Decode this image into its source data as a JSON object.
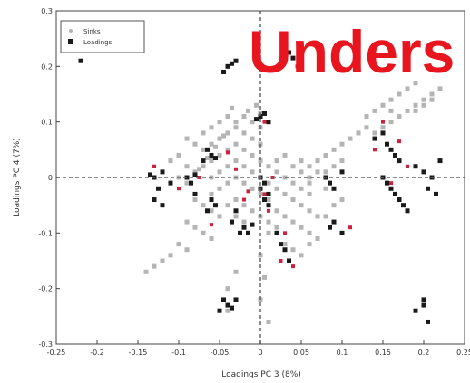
{
  "chart_data": {
    "type": "scatter",
    "title": "",
    "xlabel": "Loadings PC 3 (8%)",
    "ylabel": "Loadings PC 4 (7%)",
    "xlim": [
      -0.25,
      0.25
    ],
    "ylim": [
      -0.3,
      0.3
    ],
    "xticks": [
      -0.25,
      -0.2,
      -0.15,
      -0.1,
      -0.05,
      0,
      0.05,
      0.1,
      0.15,
      0.2,
      0.25
    ],
    "xtick_labels": [
      "-0.25",
      "-0.2",
      "-0.15",
      "-0.1",
      "-0.05",
      "0",
      "0.05",
      "0.1",
      "0.15",
      "0.2",
      "0.25"
    ],
    "yticks": [
      -0.3,
      -0.2,
      -0.1,
      0,
      0.1,
      0.2,
      0.3
    ],
    "ytick_labels": [
      "-0.3",
      "-0.2",
      "-0.1",
      "0",
      "0.1",
      "0.2",
      "0.3"
    ],
    "reference_lines": {
      "x": 0,
      "y": 0,
      "style": "dashed"
    },
    "grid": false,
    "legend": {
      "position": "top-left",
      "entries": [
        "Sinks",
        "Loadings"
      ]
    },
    "overlay_text": "Unders",
    "series": [
      {
        "name": "Sinks",
        "color": "#b4b4b4",
        "points": [
          [
            -0.07,
            0.02
          ],
          [
            -0.06,
            0.03
          ],
          [
            -0.05,
            0.04
          ],
          [
            -0.04,
            0.05
          ],
          [
            -0.03,
            0.06
          ],
          [
            -0.02,
            0.05
          ],
          [
            -0.01,
            0.04
          ],
          [
            0.0,
            0.03
          ],
          [
            -0.07,
            0.05
          ],
          [
            -0.06,
            0.06
          ],
          [
            -0.05,
            0.07
          ],
          [
            -0.04,
            0.08
          ],
          [
            -0.03,
            0.09
          ],
          [
            -0.02,
            0.08
          ],
          [
            -0.01,
            0.07
          ],
          [
            0.0,
            0.06
          ],
          [
            -0.06,
            0.0
          ],
          [
            -0.05,
            0.01
          ],
          [
            -0.04,
            0.02
          ],
          [
            -0.03,
            0.03
          ],
          [
            -0.02,
            0.02
          ],
          [
            -0.01,
            0.01
          ],
          [
            0.0,
            0.0
          ],
          [
            0.01,
            -0.01
          ],
          [
            -0.06,
            -0.03
          ],
          [
            -0.05,
            -0.02
          ],
          [
            -0.04,
            -0.01
          ],
          [
            -0.03,
            0.0
          ],
          [
            -0.02,
            -0.01
          ],
          [
            -0.01,
            -0.02
          ],
          [
            0.0,
            -0.03
          ],
          [
            0.01,
            -0.04
          ],
          [
            -0.08,
            -0.04
          ],
          [
            -0.07,
            -0.05
          ],
          [
            -0.06,
            -0.06
          ],
          [
            -0.05,
            -0.07
          ],
          [
            -0.04,
            -0.05
          ],
          [
            -0.03,
            -0.04
          ],
          [
            -0.09,
            -0.08
          ],
          [
            -0.08,
            -0.09
          ],
          [
            -0.07,
            -0.1
          ],
          [
            -0.06,
            -0.11
          ],
          [
            -0.1,
            -0.12
          ],
          [
            -0.09,
            -0.13
          ],
          [
            -0.11,
            -0.14
          ],
          [
            -0.12,
            -0.15
          ],
          [
            -0.13,
            -0.16
          ],
          [
            -0.14,
            -0.17
          ],
          [
            0.01,
            0.02
          ],
          [
            0.02,
            0.01
          ],
          [
            0.03,
            0.0
          ],
          [
            0.04,
            -0.01
          ],
          [
            0.05,
            -0.02
          ],
          [
            0.06,
            -0.03
          ],
          [
            0.02,
            -0.02
          ],
          [
            0.03,
            -0.03
          ],
          [
            0.04,
            -0.04
          ],
          [
            0.05,
            -0.05
          ],
          [
            0.06,
            -0.06
          ],
          [
            0.07,
            -0.07
          ],
          [
            0.04,
            -0.08
          ],
          [
            0.05,
            -0.09
          ],
          [
            0.06,
            -0.1
          ],
          [
            0.07,
            -0.11
          ],
          [
            0.03,
            -0.12
          ],
          [
            0.04,
            -0.13
          ],
          [
            0.05,
            -0.14
          ],
          [
            0.02,
            -0.06
          ],
          [
            0.03,
            -0.07
          ],
          [
            0.01,
            -0.08
          ],
          [
            0.02,
            -0.09
          ],
          [
            0.01,
            -0.1
          ],
          [
            0.02,
            0.03
          ],
          [
            0.03,
            0.04
          ],
          [
            0.04,
            0.02
          ],
          [
            0.05,
            0.03
          ],
          [
            0.06,
            0.02
          ],
          [
            0.07,
            0.03
          ],
          [
            0.08,
            0.04
          ],
          [
            0.09,
            0.05
          ],
          [
            0.05,
            0.01
          ],
          [
            0.06,
            0.0
          ],
          [
            0.07,
            0.01
          ],
          [
            0.08,
            0.01
          ],
          [
            0.09,
            0.02
          ],
          [
            0.1,
            0.03
          ],
          [
            0.06,
            -0.01
          ],
          [
            0.08,
            -0.02
          ],
          [
            -0.03,
            0.1
          ],
          [
            -0.02,
            0.11
          ],
          [
            -0.01,
            0.1
          ],
          [
            0.0,
            0.09
          ],
          [
            -0.04,
            0.11
          ],
          [
            -0.05,
            0.1
          ],
          [
            -0.06,
            0.09
          ],
          [
            -0.07,
            0.08
          ],
          [
            -0.08,
            0.06
          ],
          [
            -0.09,
            0.07
          ],
          [
            -0.1,
            0.04
          ],
          [
            -0.11,
            0.03
          ],
          [
            -0.09,
            0.02
          ],
          [
            -0.08,
            0.01
          ],
          [
            -0.1,
            0.0
          ],
          [
            -0.09,
            -0.01
          ],
          [
            0.1,
            0.06
          ],
          [
            0.11,
            0.07
          ],
          [
            0.12,
            0.08
          ],
          [
            0.13,
            0.09
          ],
          [
            0.14,
            0.08
          ],
          [
            0.15,
            0.09
          ],
          [
            0.16,
            0.1
          ],
          [
            0.17,
            0.11
          ],
          [
            0.18,
            0.12
          ],
          [
            0.19,
            0.13
          ],
          [
            0.2,
            0.14
          ],
          [
            0.21,
            0.15
          ],
          [
            0.22,
            0.16
          ],
          [
            0.19,
            0.12
          ],
          [
            0.2,
            0.13
          ],
          [
            0.21,
            0.14
          ],
          [
            0.13,
            0.11
          ],
          [
            0.14,
            0.12
          ],
          [
            0.15,
            0.13
          ],
          [
            0.16,
            0.14
          ],
          [
            0.17,
            0.15
          ],
          [
            0.18,
            0.16
          ],
          [
            0.19,
            0.17
          ],
          [
            0.16,
            0.12
          ],
          [
            -0.02,
            -0.05
          ],
          [
            -0.01,
            -0.06
          ],
          [
            0.0,
            -0.07
          ],
          [
            -0.03,
            -0.07
          ],
          [
            -0.02,
            -0.08
          ],
          [
            0.0,
            -0.14
          ],
          [
            0.005,
            -0.18
          ],
          [
            0.0,
            -0.22
          ],
          [
            0.01,
            -0.26
          ],
          [
            -0.04,
            -0.2
          ],
          [
            -0.03,
            -0.17
          ],
          [
            -0.04,
            -0.24
          ],
          [
            0.08,
            -0.07
          ],
          [
            0.09,
            -0.05
          ],
          [
            0.1,
            -0.04
          ],
          [
            0.06,
            -0.12
          ],
          [
            -0.015,
            0.12
          ],
          [
            -0.005,
            0.13
          ],
          [
            0.0,
            0.115
          ],
          [
            -0.035,
            0.125
          ],
          [
            -0.045,
            0.075
          ],
          [
            -0.055,
            0.055
          ],
          [
            -0.065,
            0.035
          ],
          [
            -0.075,
            0.015
          ]
        ]
      },
      {
        "name": "Loadings",
        "color": "#1a1a1a",
        "points": [
          [
            -0.23,
            0.24
          ],
          [
            -0.22,
            0.25
          ],
          [
            -0.22,
            0.21
          ],
          [
            -0.235,
            0.23
          ],
          [
            -0.13,
            0.0
          ],
          [
            -0.12,
            0.01
          ],
          [
            -0.11,
            -0.01
          ],
          [
            -0.125,
            -0.02
          ],
          [
            -0.13,
            -0.04
          ],
          [
            -0.12,
            -0.05
          ],
          [
            -0.135,
            0.005
          ],
          [
            -0.09,
            0.0
          ],
          [
            -0.085,
            -0.01
          ],
          [
            -0.08,
            0.005
          ],
          [
            -0.08,
            -0.03
          ],
          [
            -0.04,
            0.2
          ],
          [
            -0.035,
            0.205
          ],
          [
            -0.03,
            0.21
          ],
          [
            -0.045,
            0.19
          ],
          [
            -0.06,
            0.04
          ],
          [
            -0.065,
            0.05
          ],
          [
            -0.055,
            0.035
          ],
          [
            -0.07,
            0.03
          ],
          [
            -0.06,
            -0.04
          ],
          [
            -0.055,
            -0.05
          ],
          [
            -0.065,
            -0.06
          ],
          [
            -0.035,
            -0.08
          ],
          [
            -0.03,
            -0.06
          ],
          [
            -0.02,
            -0.09
          ],
          [
            -0.025,
            -0.1
          ],
          [
            -0.01,
            -0.085
          ],
          [
            -0.015,
            -0.1
          ],
          [
            -0.045,
            -0.22
          ],
          [
            -0.04,
            -0.23
          ],
          [
            -0.05,
            -0.24
          ],
          [
            -0.035,
            -0.235
          ],
          [
            -0.03,
            -0.22
          ],
          [
            0.0,
            0.11
          ],
          [
            0.005,
            0.115
          ],
          [
            0.01,
            0.1
          ],
          [
            -0.005,
            0.105
          ],
          [
            0.0,
            0.0
          ],
          [
            0.005,
            -0.01
          ],
          [
            0.0,
            -0.02
          ],
          [
            0.01,
            -0.03
          ],
          [
            0.005,
            -0.04
          ],
          [
            0.01,
            -0.05
          ],
          [
            0.02,
            -0.1
          ],
          [
            0.025,
            -0.12
          ],
          [
            0.03,
            -0.13
          ],
          [
            0.035,
            -0.15
          ],
          [
            0.03,
            0.22
          ],
          [
            0.035,
            0.225
          ],
          [
            0.04,
            0.215
          ],
          [
            0.05,
            0.23
          ],
          [
            0.08,
            0.0
          ],
          [
            0.085,
            -0.01
          ],
          [
            0.09,
            -0.02
          ],
          [
            0.1,
            0.01
          ],
          [
            0.09,
            -0.08
          ],
          [
            0.1,
            -0.1
          ],
          [
            0.085,
            -0.09
          ],
          [
            0.14,
            0.07
          ],
          [
            0.15,
            0.08
          ],
          [
            0.155,
            0.06
          ],
          [
            0.16,
            0.05
          ],
          [
            0.165,
            0.04
          ],
          [
            0.17,
            0.03
          ],
          [
            0.15,
            0.0
          ],
          [
            0.155,
            -0.01
          ],
          [
            0.16,
            -0.02
          ],
          [
            0.165,
            -0.03
          ],
          [
            0.17,
            -0.04
          ],
          [
            0.175,
            -0.05
          ],
          [
            0.18,
            -0.06
          ],
          [
            0.19,
            0.02
          ],
          [
            0.2,
            0.01
          ],
          [
            0.21,
            0.0
          ],
          [
            0.205,
            -0.02
          ],
          [
            0.215,
            -0.03
          ],
          [
            0.22,
            0.03
          ],
          [
            0.19,
            -0.24
          ],
          [
            0.2,
            -0.23
          ],
          [
            0.205,
            -0.26
          ],
          [
            0.2,
            -0.22
          ]
        ]
      },
      {
        "name": "",
        "color": "#d0203a",
        "points": [
          [
            -0.13,
            0.02
          ],
          [
            -0.1,
            -0.02
          ],
          [
            -0.075,
            0.0
          ],
          [
            -0.06,
            -0.085
          ],
          [
            -0.04,
            0.045
          ],
          [
            -0.02,
            -0.04
          ],
          [
            0.005,
            0.1
          ],
          [
            0.01,
            -0.06
          ],
          [
            0.015,
            0.0
          ],
          [
            0.025,
            -0.15
          ],
          [
            0.03,
            -0.1
          ],
          [
            0.04,
            -0.16
          ],
          [
            0.045,
            0.2
          ],
          [
            0.14,
            0.05
          ],
          [
            0.15,
            0.1
          ],
          [
            0.16,
            -0.01
          ],
          [
            0.17,
            0.065
          ],
          [
            0.18,
            0.02
          ],
          [
            -0.03,
            0.015
          ],
          [
            0.005,
            -0.03
          ],
          [
            -0.015,
            -0.025
          ],
          [
            0.11,
            -0.09
          ]
        ]
      }
    ]
  }
}
